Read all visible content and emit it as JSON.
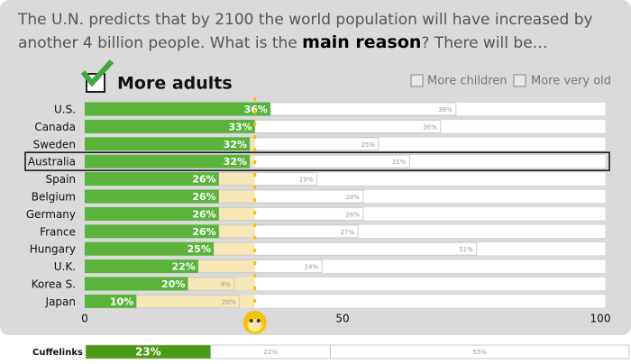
{
  "chart_data": {
    "type": "bar",
    "orientation": "horizontal",
    "question": {
      "before": "The U.N. predicts that by 2100 the world population will have increased by another 4 billion people. What is the ",
      "emphasis": "main reason",
      "after": "? There will be…"
    },
    "categories": [
      "U.S.",
      "Canada",
      "Sweden",
      "Australia",
      "Spain",
      "Belgium",
      "Germany",
      "France",
      "Hungary",
      "U.K.",
      "Korea S.",
      "Japan"
    ],
    "series": [
      {
        "name": "More adults",
        "checked": true,
        "color": "#5ab43c",
        "values": [
          36,
          33,
          32,
          32,
          26,
          26,
          26,
          26,
          25,
          22,
          20,
          10
        ],
        "value_labels": [
          "36%",
          "33%",
          "32%",
          "32%",
          "26%",
          "26%",
          "26%",
          "26%",
          "25%",
          "22%",
          "20%",
          "10%"
        ]
      },
      {
        "name": "More children",
        "checked": false,
        "color": "#ffffff",
        "values": [
          36,
          36,
          25,
          31,
          19,
          28,
          28,
          27,
          51,
          24,
          9,
          20
        ],
        "value_labels": [
          "36%",
          "36%",
          "25%",
          "31%",
          "19%",
          "28%",
          "28%",
          "27%",
          "51%",
          "24%",
          "9%",
          "20%"
        ]
      }
    ],
    "other_option": "More very old",
    "highlighted_category": "Australia",
    "chance_line": 33,
    "chance_color": "#f5c400",
    "xlim": [
      0,
      100
    ],
    "xticks": [
      0,
      50,
      100
    ],
    "summary": {
      "label": "Cuffelinks",
      "values": [
        23,
        22,
        55
      ],
      "value_labels": [
        "23%",
        "22%",
        "55%"
      ]
    }
  }
}
